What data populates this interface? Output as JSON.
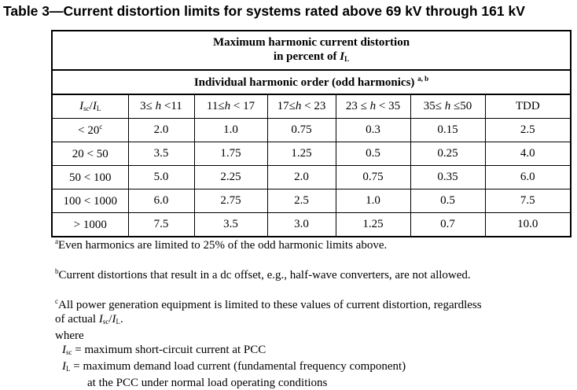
{
  "title": "Table 3—Current distortion limits for systems rated above 69 kV through 161 kV",
  "header": {
    "line1": "Maximum harmonic current distortion",
    "line2_prefix": "in percent of ",
    "line2_I": "I",
    "line2_sub": "L",
    "line3": "Individual harmonic order (odd harmonics)",
    "line3_sup": "a, b"
  },
  "columns": {
    "isc_I1": "I",
    "isc_sub1": "sc",
    "slash": "/",
    "isc_I2": "I",
    "isc_sub2": "L",
    "h1a": "3≤ ",
    "h1b": " <11",
    "h2a": "11≤",
    "h2b": "< 17",
    "h3a": "17≤",
    "h3b": "< 23",
    "h4a": "23 ≤",
    "h4b": "< 35",
    "h5a": "35≤",
    "h5b": " ≤50",
    "h": "h",
    "tdd": "TDD"
  },
  "rows": [
    {
      "ratio": "< 20",
      "sup": "c",
      "v": [
        "2.0",
        "1.0",
        "0.75",
        "0.3",
        "0.15",
        "2.5"
      ]
    },
    {
      "ratio": "20 < 50",
      "sup": "",
      "v": [
        "3.5",
        "1.75",
        "1.25",
        "0.5",
        "0.25",
        "4.0"
      ]
    },
    {
      "ratio": "50 < 100",
      "sup": "",
      "v": [
        "5.0",
        "2.25",
        "2.0",
        "0.75",
        "0.35",
        "6.0"
      ]
    },
    {
      "ratio": "100 < 1000",
      "sup": "",
      "v": [
        "6.0",
        "2.75",
        "2.5",
        "1.0",
        "0.5",
        "7.5"
      ]
    },
    {
      "ratio": "> 1000",
      "sup": "",
      "v": [
        "7.5",
        "3.5",
        "3.0",
        "1.25",
        "0.7",
        "10.0"
      ]
    }
  ],
  "notes": {
    "a_mark": "a",
    "a": "Even harmonics are limited to 25% of the odd harmonic limits above.",
    "b_mark": "b",
    "b": "Current distortions that result in a dc offset, e.g., half-wave converters, are not allowed.",
    "c_mark": "c",
    "c1": "All power generation equipment is limited to these values of current distortion, regardless",
    "c2": "of actual ",
    "I": "I",
    "sc": "sc",
    "slash": "/",
    "L": "L",
    "dot": ".",
    "where": "where",
    "isc_def": " = maximum short-circuit current at PCC",
    "il_def": " = maximum demand load current (fundamental frequency component)",
    "il_def2": "at the PCC under normal load operating conditions"
  }
}
